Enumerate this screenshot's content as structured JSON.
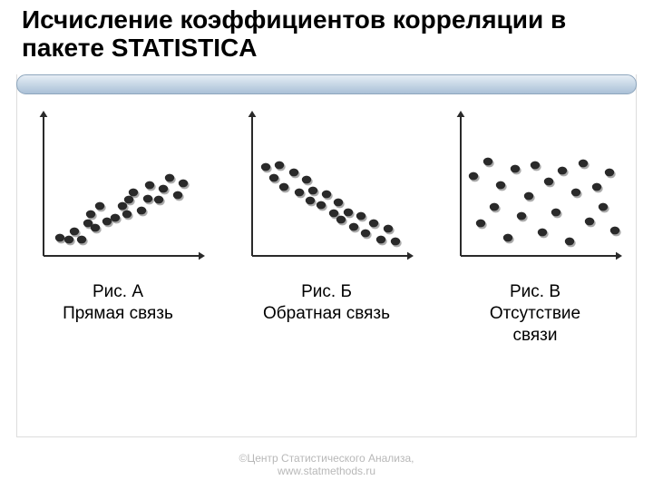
{
  "title": "Исчисление коэффициентов корреляции в пакете STATISTICA",
  "footer_line1": "©Центр Статистического Анализа,",
  "footer_line2": "www.statmethods.ru",
  "header_bar": {
    "grad_top": "#e8eff6",
    "grad_mid": "#c7d7e6",
    "grad_bot": "#a9bfd6",
    "border": "#8ea6bd",
    "radius": 10
  },
  "axis": {
    "stroke": "#2a2a2a",
    "width": 2,
    "arrow": 7
  },
  "dot": {
    "rx": 5.2,
    "ry": 4.4,
    "fill": "#2a2a2a",
    "shadow": "#00000055",
    "shadow_dx": 1.5,
    "shadow_dy": 2
  },
  "charts": [
    {
      "caption_line1": "Рис. А",
      "caption_line2": "Прямая связь",
      "points": [
        [
          36,
          146
        ],
        [
          46,
          148
        ],
        [
          52,
          139
        ],
        [
          60,
          148
        ],
        [
          67,
          130
        ],
        [
          75,
          135
        ],
        [
          70,
          120
        ],
        [
          80,
          111
        ],
        [
          88,
          128
        ],
        [
          97,
          124
        ],
        [
          105,
          111
        ],
        [
          110,
          120
        ],
        [
          112,
          104
        ],
        [
          117,
          96
        ],
        [
          126,
          116
        ],
        [
          133,
          103
        ],
        [
          135,
          88
        ],
        [
          145,
          104
        ],
        [
          150,
          92
        ],
        [
          157,
          80
        ],
        [
          166,
          99
        ],
        [
          172,
          86
        ]
      ]
    },
    {
      "caption_line1": "Рис. Б",
      "caption_line2": "Обратная связь",
      "points": [
        [
          33,
          68
        ],
        [
          42,
          80
        ],
        [
          48,
          66
        ],
        [
          53,
          90
        ],
        [
          64,
          74
        ],
        [
          70,
          96
        ],
        [
          78,
          82
        ],
        [
          82,
          105
        ],
        [
          85,
          94
        ],
        [
          94,
          110
        ],
        [
          100,
          98
        ],
        [
          108,
          119
        ],
        [
          113,
          107
        ],
        [
          116,
          126
        ],
        [
          124,
          118
        ],
        [
          130,
          134
        ],
        [
          138,
          122
        ],
        [
          143,
          141
        ],
        [
          152,
          130
        ],
        [
          160,
          148
        ],
        [
          168,
          136
        ],
        [
          176,
          150
        ]
      ]
    },
    {
      "caption_line1": "Рис. В",
      "caption_line2": "Отсутствие связи",
      "caption_line3": "",
      "points": [
        [
          32,
          78
        ],
        [
          40,
          130
        ],
        [
          48,
          62
        ],
        [
          55,
          112
        ],
        [
          62,
          88
        ],
        [
          70,
          146
        ],
        [
          78,
          70
        ],
        [
          85,
          122
        ],
        [
          93,
          100
        ],
        [
          100,
          66
        ],
        [
          108,
          140
        ],
        [
          115,
          84
        ],
        [
          123,
          118
        ],
        [
          130,
          72
        ],
        [
          138,
          150
        ],
        [
          145,
          96
        ],
        [
          153,
          64
        ],
        [
          160,
          128
        ],
        [
          168,
          90
        ],
        [
          175,
          112
        ],
        [
          182,
          74
        ],
        [
          188,
          138
        ]
      ]
    }
  ],
  "captions_override": {
    "2": {
      "line1": "Рис. В",
      "line2": "Отсутствие",
      "line3": "связи"
    }
  }
}
